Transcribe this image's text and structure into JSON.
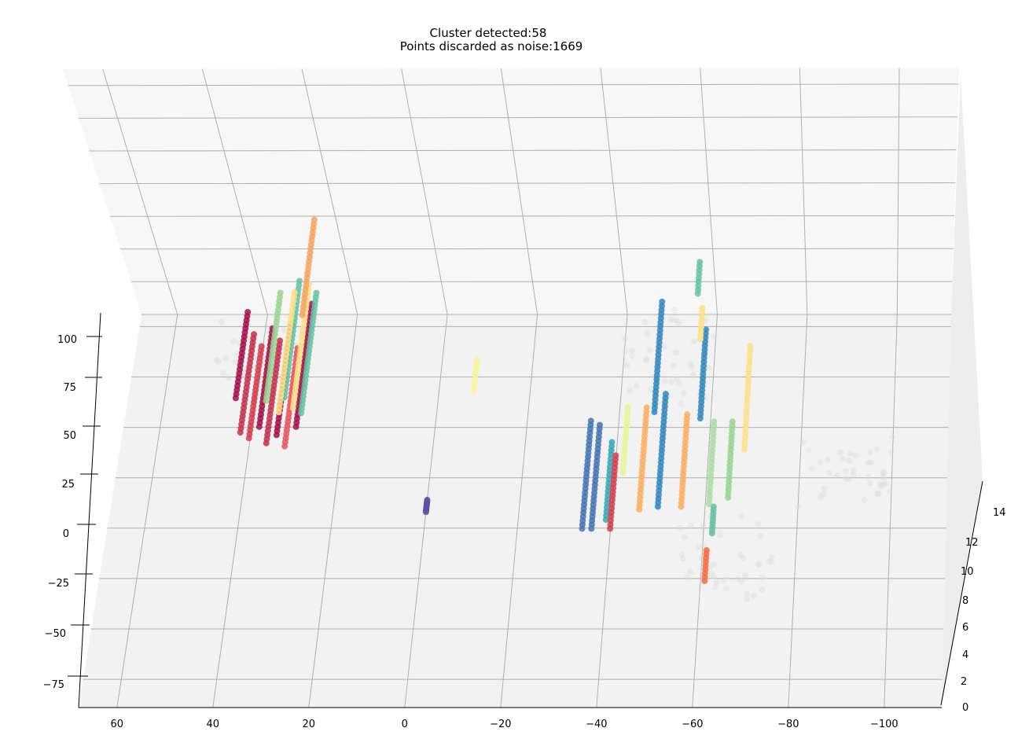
{
  "chart_data": {
    "type": "scatter",
    "projection": "3d",
    "title_lines": [
      "Cluster detected:58",
      "Points discarded as noise:1669"
    ],
    "clusters_detected": 58,
    "noise_points": 1669,
    "grid": true,
    "x_axis": {
      "ticks": [
        60,
        40,
        20,
        0,
        -20,
        -40,
        -60,
        -80,
        -100
      ],
      "lim": [
        68,
        -112
      ]
    },
    "y_axis": {
      "ticks": [
        100,
        75,
        50,
        25,
        0,
        -25,
        -50,
        -75
      ],
      "lim": [
        -89,
        106
      ]
    },
    "z_axis": {
      "ticks": [
        0,
        2,
        4,
        6,
        8,
        10,
        12,
        14
      ],
      "lim": [
        0,
        15
      ]
    },
    "noise_color": "#d9d9d9",
    "clusters": [
      {
        "color": "#a50f48",
        "x": 44,
        "y": [
          58,
          100
        ],
        "z": 4
      },
      {
        "color": "#c2334f",
        "x": 42,
        "y": [
          42,
          90
        ],
        "z": 3.5
      },
      {
        "color": "#d53e4f",
        "x": 40,
        "y": [
          40,
          85
        ],
        "z": 3
      },
      {
        "color": "#a50f48",
        "x": 38,
        "y": [
          44,
          92
        ],
        "z": 4
      },
      {
        "color": "#c2334f",
        "x": 36,
        "y": [
          36,
          86
        ],
        "z": 4
      },
      {
        "color": "#a50f48",
        "x": 34,
        "y": [
          40,
          94
        ],
        "z": 4
      },
      {
        "color": "#e5535d",
        "x": 32,
        "y": [
          36,
          84
        ],
        "z": 3
      },
      {
        "color": "#a50f48",
        "x": 30,
        "y": [
          44,
          104
        ],
        "z": 4
      },
      {
        "color": "#99d594",
        "x": 37,
        "y": [
          52,
          104
        ],
        "z": 7
      },
      {
        "color": "#66c2a5",
        "x": 33,
        "y": [
          52,
          108
        ],
        "z": 8
      },
      {
        "color": "#fee08b",
        "x": 34,
        "y": [
          48,
          106
        ],
        "z": 6
      },
      {
        "color": "#fee08b",
        "x": 31,
        "y": [
          50,
          110
        ],
        "z": 6
      },
      {
        "color": "#66c2a5",
        "x": 29,
        "y": [
          46,
          104
        ],
        "z": 7
      },
      {
        "color": "#f4a460",
        "x": 31,
        "y": [
          85,
          130
        ],
        "z": 12
      },
      {
        "color": "#f5f5a0",
        "x": -8,
        "y": [
          60,
          75
        ],
        "z": 5
      },
      {
        "color": "#5e4fa2",
        "x": 0,
        "y": [
          8,
          14
        ],
        "z": 0
      },
      {
        "color": "#3288bd",
        "x": -48,
        "y": [
          45,
          98
        ],
        "z": 8
      },
      {
        "color": "#3288bd",
        "x": -58,
        "y": [
          45,
          88
        ],
        "z": 6
      },
      {
        "color": "#66c2a5",
        "x": -56,
        "y": [
          95,
          110
        ],
        "z": 12
      },
      {
        "color": "#fee08b",
        "x": -57,
        "y": [
          80,
          95
        ],
        "z": 8
      },
      {
        "color": "#4575b4",
        "x": -34,
        "y": [
          -3,
          50
        ],
        "z": 2
      },
      {
        "color": "#4575b4",
        "x": -36,
        "y": [
          -3,
          48
        ],
        "z": 2
      },
      {
        "color": "#3ca6b5",
        "x": -39,
        "y": [
          0,
          38
        ],
        "z": 3
      },
      {
        "color": "#d53e4f",
        "x": -40,
        "y": [
          -3,
          33
        ],
        "z": 2
      },
      {
        "color": "#e6f598",
        "x": -42,
        "y": [
          20,
          52
        ],
        "z": 5
      },
      {
        "color": "#fdae61",
        "x": -46,
        "y": [
          5,
          55
        ],
        "z": 3
      },
      {
        "color": "#3288bd",
        "x": -50,
        "y": [
          5,
          60
        ],
        "z": 4
      },
      {
        "color": "#fdae61",
        "x": -55,
        "y": [
          5,
          50
        ],
        "z": 4
      },
      {
        "color": "#abdda4",
        "x": -61,
        "y": [
          5,
          45
        ],
        "z": 5
      },
      {
        "color": "#99d594",
        "x": -65,
        "y": [
          8,
          45
        ],
        "z": 5
      },
      {
        "color": "#fee08b",
        "x": -68,
        "y": [
          30,
          80
        ],
        "z": 6
      },
      {
        "color": "#66c2a5",
        "x": -62,
        "y": [
          -8,
          5
        ],
        "z": 4
      },
      {
        "color": "#f46d43",
        "x": -61,
        "y": [
          -30,
          -15
        ],
        "z": 3
      }
    ]
  }
}
